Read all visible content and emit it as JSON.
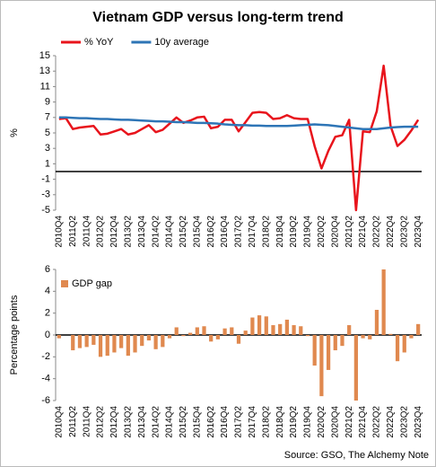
{
  "source": "Source: GSO, The Alchemy Note",
  "chart_data": [
    {
      "type": "line",
      "title": "Vietnam GDP versus long-term trend",
      "y_label": "%",
      "categories": [
        "2010Q4",
        null,
        "2011Q2",
        null,
        "2011Q4",
        null,
        "2012Q2",
        null,
        "2012Q4",
        null,
        "2013Q2",
        null,
        "2013Q4",
        null,
        "2014Q2",
        null,
        "2014Q4",
        null,
        "2015Q2",
        null,
        "2015Q4",
        null,
        "2016Q2",
        null,
        "2016Q4",
        null,
        "2017Q2",
        null,
        "2017Q4",
        null,
        "2018Q2",
        null,
        "2018Q4",
        null,
        "2019Q2",
        null,
        "2019Q4",
        null,
        "2020Q2",
        null,
        "2020Q4",
        null,
        "2021Q2",
        null,
        "2021Q4",
        null,
        "2022Q2",
        null,
        "2022Q4",
        null,
        "2023Q2",
        null,
        "2023Q4"
      ],
      "series": [
        {
          "name": "% YoY",
          "color": "#e8141c",
          "values": [
            6.8,
            6.9,
            5.5,
            5.7,
            5.8,
            5.9,
            4.8,
            4.9,
            5.2,
            5.5,
            4.8,
            5.0,
            5.5,
            6.0,
            5.1,
            5.4,
            6.2,
            7.0,
            6.3,
            6.6,
            7.0,
            7.1,
            5.6,
            5.8,
            6.7,
            6.7,
            5.2,
            6.4,
            7.6,
            7.7,
            7.6,
            6.8,
            6.9,
            7.3,
            6.9,
            6.8,
            6.8,
            3.3,
            0.4,
            2.7,
            4.5,
            4.7,
            6.7,
            -5.0,
            5.2,
            5.1,
            7.8,
            13.7,
            5.9,
            3.3,
            4.1,
            5.3,
            6.7
          ]
        },
        {
          "name": "10y average",
          "color": "#2e75b6",
          "values": [
            7.0,
            7.0,
            6.95,
            6.9,
            6.9,
            6.85,
            6.8,
            6.8,
            6.75,
            6.7,
            6.7,
            6.65,
            6.6,
            6.55,
            6.5,
            6.5,
            6.45,
            6.4,
            6.4,
            6.35,
            6.3,
            6.3,
            6.25,
            6.2,
            6.1,
            6.05,
            6.0,
            6.0,
            5.95,
            5.95,
            5.9,
            5.9,
            5.9,
            5.9,
            5.95,
            6.0,
            6.05,
            6.1,
            6.05,
            6.0,
            5.9,
            5.8,
            5.7,
            5.6,
            5.5,
            5.5,
            5.5,
            5.6,
            5.7,
            5.75,
            5.8,
            5.8,
            5.8
          ]
        }
      ],
      "ylim": [
        -5,
        15
      ],
      "yticks": [
        -5,
        -3,
        -1,
        1,
        3,
        5,
        7,
        9,
        11,
        13,
        15
      ],
      "legend": "top"
    },
    {
      "type": "bar",
      "y_label": "Percentage points",
      "categories": [
        "2010Q4",
        null,
        "2011Q2",
        null,
        "2011Q4",
        null,
        "2012Q2",
        null,
        "2012Q4",
        null,
        "2013Q2",
        null,
        "2013Q4",
        null,
        "2014Q2",
        null,
        "2014Q4",
        null,
        "2015Q2",
        null,
        "2015Q4",
        null,
        "2016Q2",
        null,
        "2016Q4",
        null,
        "2017Q2",
        null,
        "2017Q4",
        null,
        "2018Q2",
        null,
        "2018Q4",
        null,
        "2019Q2",
        null,
        "2019Q4",
        null,
        "2020Q2",
        null,
        "2020Q4",
        null,
        "2021Q2",
        null,
        "2021Q4",
        null,
        "2022Q2",
        null,
        "2022Q4",
        null,
        "2023Q2",
        null,
        "2023Q4"
      ],
      "series": [
        {
          "name": "GDP gap",
          "color": "#e0894f",
          "values": [
            -0.3,
            0.0,
            -1.4,
            -1.2,
            -1.1,
            -0.9,
            -2.0,
            -1.9,
            -1.6,
            -1.2,
            -1.9,
            -1.6,
            -1.0,
            -0.5,
            -1.3,
            -1.1,
            -0.3,
            0.7,
            -0.1,
            0.2,
            0.7,
            0.8,
            -0.6,
            -0.4,
            0.6,
            0.7,
            -0.8,
            0.4,
            1.6,
            1.8,
            1.7,
            0.9,
            1.0,
            1.4,
            0.9,
            0.8,
            -0.1,
            -2.8,
            -5.6,
            -3.2,
            -1.4,
            -1.0,
            0.9,
            -6.0,
            -0.3,
            -0.4,
            2.3,
            6.0,
            0.1,
            -2.4,
            -1.6,
            -0.3,
            1.0
          ]
        }
      ],
      "ylim": [
        -6,
        6
      ],
      "yticks": [
        -6,
        -4,
        -2,
        0,
        2,
        4,
        6
      ],
      "legend": "top-left"
    }
  ]
}
